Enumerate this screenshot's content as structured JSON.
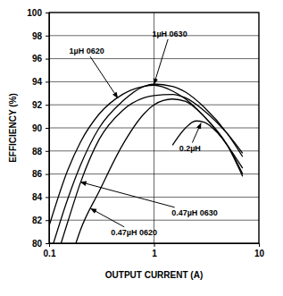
{
  "chart_data": {
    "type": "line",
    "x_label": "OUTPUT CURRENT (A)",
    "y_label": "EFFICIENCY (%)",
    "log": "x",
    "grid": true,
    "xlim": [
      0.1,
      10
    ],
    "xticks": [
      0.1,
      1,
      10
    ],
    "ylim": [
      80,
      100
    ],
    "yticks": [
      80,
      82,
      84,
      86,
      88,
      90,
      92,
      94,
      96,
      98,
      100
    ],
    "series": [
      {
        "name": "1µH 0620",
        "color": "#000000",
        "x": [
          0.1,
          0.15,
          0.2,
          0.3,
          0.5,
          0.8,
          1,
          1.5,
          2,
          3,
          5,
          7
        ],
        "values": [
          81.5,
          86.3,
          88.8,
          91.2,
          92.9,
          93.6,
          93.7,
          93.2,
          92.5,
          91,
          88.5,
          86.5
        ]
      },
      {
        "name": "1µH 0630",
        "color": "#000000",
        "x": [
          0.11,
          0.15,
          0.2,
          0.3,
          0.5,
          0.8,
          1,
          1.5,
          2,
          3,
          5,
          7
        ],
        "values": [
          80,
          83.8,
          86.8,
          90,
          92.3,
          93.6,
          93.8,
          93.6,
          93.1,
          91.8,
          89.5,
          87.5
        ]
      },
      {
        "name": "0.47µH 0630",
        "color": "#000000",
        "x": [
          0.13,
          0.15,
          0.2,
          0.3,
          0.5,
          0.8,
          1,
          1.5,
          2,
          3,
          5,
          7
        ],
        "values": [
          80,
          81.8,
          85.3,
          89,
          91.5,
          92.6,
          92.8,
          92.9,
          92.6,
          91.5,
          89.5,
          87.8
        ]
      },
      {
        "name": "0.47µH 0620",
        "color": "#000000",
        "x": [
          0.18,
          0.2,
          0.3,
          0.5,
          0.8,
          1,
          1.5,
          2,
          3,
          5,
          7
        ],
        "values": [
          80,
          81.2,
          84.5,
          88.5,
          91.2,
          92,
          92.5,
          92.3,
          91,
          88.5,
          85.8
        ]
      },
      {
        "name": "0.2µH",
        "color": "#000000",
        "x": [
          1.5,
          2,
          2.5,
          3,
          4,
          5,
          7
        ],
        "values": [
          88.5,
          90,
          90.6,
          90.5,
          89.6,
          88.5,
          86
        ]
      }
    ],
    "annotations": [
      {
        "text": "1µH 0630",
        "x": 1.41,
        "y": 98.1,
        "arrow_to": [
          1.0,
          93.8
        ]
      },
      {
        "text": "1µH 0620",
        "x": 0.228,
        "y": 96.6,
        "arrow_to": [
          0.45,
          92.6
        ]
      },
      {
        "text": "0.2µH",
        "x": 2.2,
        "y": 88.2,
        "arrow_to": [
          2.8,
          90.4
        ]
      },
      {
        "text": "0.47µH 0630",
        "x": 2.44,
        "y": 82.6,
        "arrow_to": [
          0.2,
          85.3
        ]
      },
      {
        "text": "0.47µH 0620",
        "x": 0.645,
        "y": 80.9,
        "arrow_to": [
          0.25,
          83
        ]
      }
    ]
  }
}
